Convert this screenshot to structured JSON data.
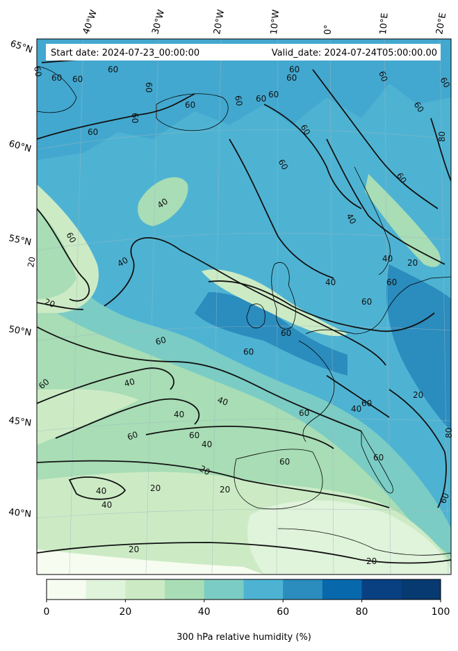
{
  "header": {
    "start_date": "Start date: 2024-07-23_00:00:00",
    "valid_date": "Valid_date: 2024-07-24T05:00:00.00"
  },
  "axes": {
    "lon_labels": [
      "40°W",
      "30°W",
      "20°W",
      "10°W",
      "0°",
      "10°E",
      "20°E"
    ],
    "lat_labels": [
      "65°N",
      "60°N",
      "55°N",
      "50°N",
      "45°N",
      "40°N"
    ]
  },
  "contour_labels": {
    "c20": "20",
    "c40": "40",
    "c60": "60",
    "c80": "80"
  },
  "colorbar": {
    "label": "300 hPa relative humidity (%)",
    "ticks": [
      "0",
      "20",
      "40",
      "60",
      "80",
      "100"
    ],
    "colors": [
      "#f7fcf0",
      "#e0f3db",
      "#ccebc5",
      "#a8ddb5",
      "#7bccc4",
      "#4eb3d3",
      "#2b8cbe",
      "#0868ac",
      "#084081",
      "#063a70"
    ]
  },
  "palette": {
    "level_0_10": "#f7fcf0",
    "level_10_20": "#e0f3db",
    "level_20_30": "#ccebc5",
    "level_30_40": "#a8ddb5",
    "level_40_50": "#7bccc4",
    "level_50_60": "#4eb3d3",
    "level_60_70": "#43a8cf",
    "level_70_80": "#2b8cbe",
    "level_80_90": "#0868ac"
  }
}
